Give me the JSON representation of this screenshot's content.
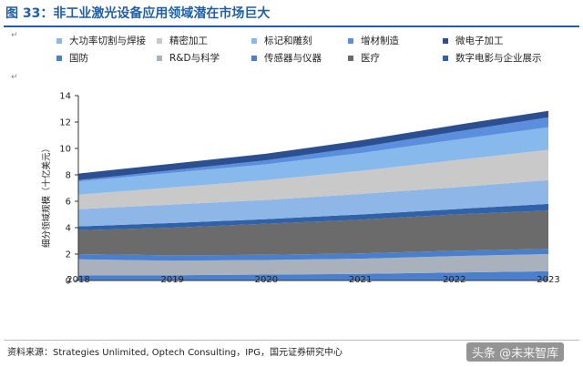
{
  "figure": {
    "title": "图 33：非工业激光设备应用领域潜在市场巨大",
    "source": "资料来源：Strategies Unlimited, Optech Consulting，IPG，国元证券研究中心",
    "watermark": "头条 @未来智库",
    "paragraph_mark": "↵"
  },
  "colors": {
    "title": "#1f5fa8",
    "series": [
      "#4a7fce",
      "#a9b1bc",
      "#4a7fce",
      "#6b6b6b",
      "#2f62a8",
      "#8eb6e6",
      "#c9c9c9",
      "#87b9ec",
      "#5b8fdd",
      "#2b4f90"
    ]
  },
  "chart_data": {
    "type": "area",
    "stacked": true,
    "title": "",
    "xlabel": "",
    "ylabel": "细分领域规模（十亿美元）",
    "ylim": [
      0,
      14
    ],
    "yticks": [
      0,
      2,
      4,
      6,
      8,
      10,
      12,
      14
    ],
    "x": [
      "2018",
      "2019",
      "2020",
      "2021",
      "2022",
      "2023"
    ],
    "grid": false,
    "legend_position": "top",
    "series": [
      {
        "name": "国防",
        "values": [
          0.4,
          0.4,
          0.45,
          0.5,
          0.6,
          0.7
        ]
      },
      {
        "name": "R&D与科学",
        "values": [
          1.2,
          1.1,
          1.1,
          1.15,
          1.25,
          1.3
        ]
      },
      {
        "name": "传感器与仪器",
        "values": [
          0.4,
          0.4,
          0.4,
          0.4,
          0.4,
          0.4
        ]
      },
      {
        "name": "医疗",
        "values": [
          1.8,
          2.1,
          2.35,
          2.55,
          2.75,
          2.9
        ]
      },
      {
        "name": "数字电影与企业展示",
        "values": [
          0.3,
          0.35,
          0.35,
          0.4,
          0.4,
          0.5
        ]
      },
      {
        "name": "大功率切割与焊接",
        "values": [
          1.3,
          1.4,
          1.45,
          1.55,
          1.65,
          1.8
        ]
      },
      {
        "name": "精密加工",
        "values": [
          1.1,
          1.3,
          1.5,
          1.75,
          2.05,
          2.3
        ]
      },
      {
        "name": "标记和雕刻",
        "values": [
          1.0,
          1.1,
          1.2,
          1.35,
          1.55,
          1.7
        ]
      },
      {
        "name": "增材制造",
        "values": [
          0.1,
          0.2,
          0.3,
          0.45,
          0.6,
          0.75
        ]
      },
      {
        "name": "微电子加工",
        "values": [
          0.5,
          0.5,
          0.5,
          0.5,
          0.5,
          0.5
        ]
      }
    ],
    "legend": [
      {
        "label": "大功率切割与焊接",
        "color": "#8eb6e6"
      },
      {
        "label": "精密加工",
        "color": "#c9c9c9"
      },
      {
        "label": "标记和雕刻",
        "color": "#87b9ec"
      },
      {
        "label": "增材制造",
        "color": "#5b8fdd"
      },
      {
        "label": "微电子加工",
        "color": "#2b4f90"
      },
      {
        "label": "国防",
        "color": "#4a7fce"
      },
      {
        "label": "R&D与科学",
        "color": "#a9b1bc"
      },
      {
        "label": "传感器与仪器",
        "color": "#4a7fce"
      },
      {
        "label": "医疗",
        "color": "#6b6b6b"
      },
      {
        "label": "数字电影与企业展示",
        "color": "#2f62a8"
      }
    ]
  }
}
